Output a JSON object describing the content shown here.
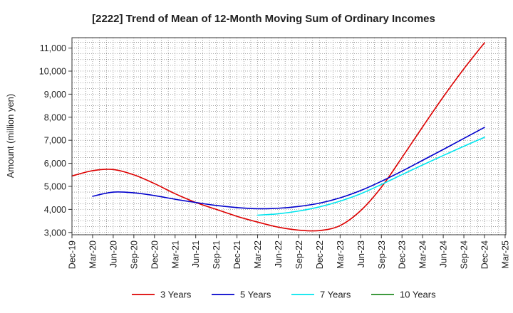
{
  "chart_data": {
    "type": "line",
    "title": "[2222]  Trend of Mean of 12-Month Moving Sum of Ordinary Incomes",
    "xlabel": "",
    "ylabel": "Amount (million yen)",
    "x_ticks": [
      "Dec-19",
      "Mar-20",
      "Jun-20",
      "Sep-20",
      "Dec-20",
      "Mar-21",
      "Jun-21",
      "Sep-21",
      "Dec-21",
      "Mar-22",
      "Jun-22",
      "Sep-22",
      "Dec-22",
      "Mar-23",
      "Jun-23",
      "Sep-23",
      "Dec-23",
      "Mar-24",
      "Jun-24",
      "Sep-24",
      "Dec-24",
      "Mar-25"
    ],
    "y_ticks": [
      3000,
      4000,
      5000,
      6000,
      7000,
      8000,
      9000,
      10000,
      11000
    ],
    "y_tick_labels": [
      "3,000",
      "4,000",
      "5,000",
      "6,000",
      "7,000",
      "8,000",
      "9,000",
      "10,000",
      "11,000"
    ],
    "ylim": [
      2900,
      11450
    ],
    "grid": true,
    "legend_position": "bottom",
    "series": [
      {
        "name": "3 Years",
        "color": "#dd0000",
        "x": [
          "Dec-19",
          "Mar-20",
          "Jun-20",
          "Sep-20",
          "Dec-20",
          "Mar-21",
          "Jun-21",
          "Sep-21",
          "Dec-21",
          "Mar-22",
          "Jun-22",
          "Sep-22",
          "Dec-22",
          "Mar-23",
          "Jun-23",
          "Sep-23",
          "Dec-23",
          "Mar-24",
          "Jun-24",
          "Sep-24",
          "Dec-24"
        ],
        "values": [
          5450,
          5680,
          5730,
          5500,
          5120,
          4680,
          4300,
          4000,
          3700,
          3450,
          3230,
          3100,
          3080,
          3300,
          3950,
          4960,
          6250,
          7580,
          8880,
          10100,
          11230
        ]
      },
      {
        "name": "5 Years",
        "color": "#0000cc",
        "x": [
          "Mar-20",
          "Jun-20",
          "Sep-20",
          "Dec-20",
          "Mar-21",
          "Jun-21",
          "Sep-21",
          "Dec-21",
          "Mar-22",
          "Jun-22",
          "Sep-22",
          "Dec-22",
          "Mar-23",
          "Jun-23",
          "Sep-23",
          "Dec-23",
          "Mar-24",
          "Jun-24",
          "Sep-24",
          "Dec-24"
        ],
        "values": [
          4570,
          4750,
          4720,
          4600,
          4440,
          4300,
          4170,
          4080,
          4030,
          4050,
          4130,
          4270,
          4500,
          4820,
          5220,
          5660,
          6130,
          6600,
          7080,
          7560
        ]
      },
      {
        "name": "7 Years",
        "color": "#00e5ee",
        "x": [
          "Mar-22",
          "Jun-22",
          "Sep-22",
          "Dec-22",
          "Mar-23",
          "Jun-23",
          "Sep-23",
          "Dec-23",
          "Mar-24",
          "Jun-24",
          "Sep-24",
          "Dec-24"
        ],
        "values": [
          3750,
          3810,
          3930,
          4110,
          4360,
          4680,
          5080,
          5510,
          5930,
          6340,
          6740,
          7130
        ]
      },
      {
        "name": "10 Years",
        "color": "#228b22",
        "x": [],
        "values": []
      }
    ]
  }
}
